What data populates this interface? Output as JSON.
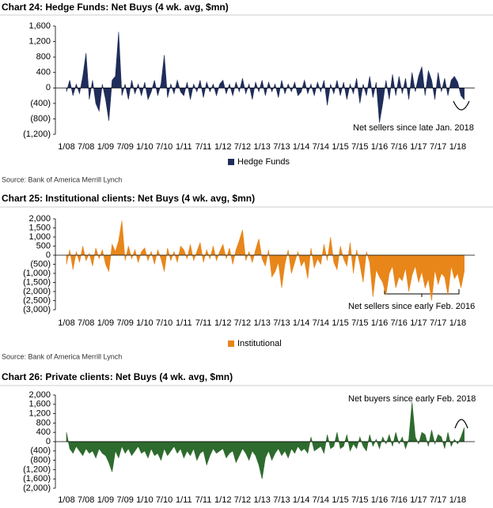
{
  "chart_data": [
    {
      "type": "area",
      "title": "Chart 24: Hedge Funds: Net Buys (4 wk. avg, $mn)",
      "categories": [
        "1/08",
        null,
        null,
        null,
        null,
        null,
        "7/08",
        null,
        null,
        null,
        null,
        null,
        "1/09",
        null,
        null,
        null,
        null,
        null,
        "7/09",
        null,
        null,
        null,
        null,
        null,
        "1/10",
        null,
        null,
        null,
        null,
        null,
        "7/10",
        null,
        null,
        null,
        null,
        null,
        "1/11",
        null,
        null,
        null,
        null,
        null,
        "7/11",
        null,
        null,
        null,
        null,
        null,
        "1/12",
        null,
        null,
        null,
        null,
        null,
        "7/12",
        null,
        null,
        null,
        null,
        null,
        "1/13",
        null,
        null,
        null,
        null,
        null,
        "7/13",
        null,
        null,
        null,
        null,
        null,
        "1/14",
        null,
        null,
        null,
        null,
        null,
        "7/14",
        null,
        null,
        null,
        null,
        null,
        "1/15",
        null,
        null,
        null,
        null,
        null,
        "7/15",
        null,
        null,
        null,
        null,
        null,
        "1/16",
        null,
        null,
        null,
        null,
        null,
        "7/16",
        null,
        null,
        null,
        null,
        null,
        "1/17",
        null,
        null,
        null,
        null,
        null,
        "7/17",
        null,
        null,
        null,
        null,
        null,
        "1/18",
        null,
        null
      ],
      "series": [
        {
          "name": "Hedge Funds",
          "color": "#1f2d5a",
          "values": [
            -100,
            200,
            -200,
            100,
            -150,
            300,
            900,
            -300,
            200,
            -400,
            -600,
            100,
            -300,
            -850,
            200,
            300,
            1450,
            -200,
            100,
            -300,
            200,
            -150,
            100,
            -200,
            150,
            -300,
            -100,
            200,
            -200,
            100,
            850,
            -250,
            100,
            -150,
            200,
            -100,
            -200,
            150,
            -300,
            100,
            -100,
            200,
            -250,
            150,
            -100,
            100,
            -200,
            100,
            200,
            -150,
            100,
            -200,
            150,
            -100,
            250,
            -150,
            100,
            -300,
            150,
            -100,
            200,
            -200,
            150,
            -100,
            100,
            -250,
            200,
            -150,
            100,
            -100,
            150,
            -200,
            -100,
            200,
            -150,
            100,
            -200,
            150,
            -100,
            200,
            -450,
            100,
            -150,
            200,
            -200,
            150,
            -300,
            100,
            -150,
            250,
            -400,
            100,
            -200,
            300,
            -250,
            150,
            -900,
            -400,
            200,
            -300,
            350,
            -200,
            300,
            -150,
            250,
            -300,
            400,
            -100,
            300,
            550,
            -200,
            450,
            200,
            -300,
            400,
            -100,
            250,
            -200,
            200,
            300,
            150,
            -200,
            -300
          ]
        }
      ],
      "ylim": [
        -1200,
        1600
      ],
      "yticks": [
        {
          "value": -1200,
          "label": "(1,200)"
        },
        {
          "value": -800,
          "label": "(800)"
        },
        {
          "value": -400,
          "label": "(400)"
        },
        0,
        400,
        800,
        {
          "value": 1200,
          "label": "1,200"
        },
        {
          "value": 1600,
          "label": "1,600"
        }
      ],
      "annotation": "Net sellers since late Jan. 2018",
      "source": "Source: Bank of America Merrill Lynch"
    },
    {
      "type": "area",
      "title": "Chart 25: Institutional clients: Net Buys (4 wk. avg, $mn)",
      "categories": [
        "1/08",
        null,
        null,
        null,
        null,
        null,
        "7/08",
        null,
        null,
        null,
        null,
        null,
        "1/09",
        null,
        null,
        null,
        null,
        null,
        "7/09",
        null,
        null,
        null,
        null,
        null,
        "1/10",
        null,
        null,
        null,
        null,
        null,
        "7/10",
        null,
        null,
        null,
        null,
        null,
        "1/11",
        null,
        null,
        null,
        null,
        null,
        "7/11",
        null,
        null,
        null,
        null,
        null,
        "1/12",
        null,
        null,
        null,
        null,
        null,
        "7/12",
        null,
        null,
        null,
        null,
        null,
        "1/13",
        null,
        null,
        null,
        null,
        null,
        "7/13",
        null,
        null,
        null,
        null,
        null,
        "1/14",
        null,
        null,
        null,
        null,
        null,
        "7/14",
        null,
        null,
        null,
        null,
        null,
        "1/15",
        null,
        null,
        null,
        null,
        null,
        "7/15",
        null,
        null,
        null,
        null,
        null,
        "1/16",
        null,
        null,
        null,
        null,
        null,
        "7/16",
        null,
        null,
        null,
        null,
        null,
        "1/17",
        null,
        null,
        null,
        null,
        null,
        "7/17",
        null,
        null,
        null,
        null,
        null,
        "1/18",
        null,
        null
      ],
      "series": [
        {
          "name": "Institutional",
          "color": "#e8861a",
          "values": [
            -500,
            300,
            -800,
            200,
            -400,
            500,
            -300,
            100,
            -600,
            400,
            -200,
            300,
            -500,
            -900,
            600,
            200,
            800,
            1900,
            -300,
            500,
            -200,
            300,
            -400,
            200,
            400,
            -300,
            200,
            -500,
            300,
            -200,
            -900,
            400,
            -300,
            200,
            -400,
            500,
            300,
            -200,
            600,
            -300,
            200,
            700,
            -400,
            300,
            -200,
            500,
            -300,
            200,
            600,
            -200,
            400,
            -500,
            300,
            800,
            1400,
            -300,
            200,
            -400,
            300,
            900,
            -200,
            -600,
            300,
            -1200,
            -900,
            -400,
            -1800,
            -500,
            300,
            -1000,
            -400,
            200,
            -600,
            -300,
            -1300,
            400,
            -700,
            -200,
            -500,
            600,
            -300,
            1000,
            -400,
            -800,
            500,
            -200,
            -600,
            700,
            -1000,
            300,
            -500,
            -1500,
            200,
            -400,
            -2300,
            -800,
            -1200,
            -1500,
            -2200,
            -1000,
            -600,
            -1800,
            -1200,
            -1400,
            -700,
            -2000,
            -1100,
            -600,
            -1500,
            -900,
            -1800,
            -1300,
            -2500,
            -800,
            -1600,
            -1000,
            -1200,
            -2200,
            -600,
            -1300,
            -1000,
            -1800,
            -900
          ]
        }
      ],
      "ylim": [
        -3000,
        2000
      ],
      "yticks": [
        {
          "value": -3000,
          "label": "(3,000)"
        },
        {
          "value": -2500,
          "label": "(2,500)"
        },
        {
          "value": -2000,
          "label": "(2,000)"
        },
        {
          "value": -1500,
          "label": "(1,500)"
        },
        {
          "value": -1000,
          "label": "(1,000)"
        },
        {
          "value": -500,
          "label": "(500)"
        },
        0,
        500,
        {
          "value": 1000,
          "label": "1,000"
        },
        {
          "value": 1500,
          "label": "1,500"
        },
        {
          "value": 2000,
          "label": "2,000"
        }
      ],
      "annotation": "Net sellers since early Feb. 2016",
      "source": "Source: Bank of America Merrill Lynch"
    },
    {
      "type": "area",
      "title": "Chart 26: Private clients: Net Buys (4 wk. avg, $mn)",
      "categories": [
        "1/08",
        null,
        null,
        null,
        null,
        null,
        "7/08",
        null,
        null,
        null,
        null,
        null,
        "1/09",
        null,
        null,
        null,
        null,
        null,
        "7/09",
        null,
        null,
        null,
        null,
        null,
        "1/10",
        null,
        null,
        null,
        null,
        null,
        "7/10",
        null,
        null,
        null,
        null,
        null,
        "1/11",
        null,
        null,
        null,
        null,
        null,
        "7/11",
        null,
        null,
        null,
        null,
        null,
        "1/12",
        null,
        null,
        null,
        null,
        null,
        "7/12",
        null,
        null,
        null,
        null,
        null,
        "1/13",
        null,
        null,
        null,
        null,
        null,
        "7/13",
        null,
        null,
        null,
        null,
        null,
        "1/14",
        null,
        null,
        null,
        null,
        null,
        "7/14",
        null,
        null,
        null,
        null,
        null,
        "1/15",
        null,
        null,
        null,
        null,
        null,
        "7/15",
        null,
        null,
        null,
        null,
        null,
        "1/16",
        null,
        null,
        null,
        null,
        null,
        "7/16",
        null,
        null,
        null,
        null,
        null,
        "1/17",
        null,
        null,
        null,
        null,
        null,
        "7/17",
        null,
        null,
        null,
        null,
        null,
        "1/18",
        null,
        null
      ],
      "color": "#2e6b2e",
      "values": [
        400,
        -300,
        -500,
        -200,
        -400,
        -600,
        -300,
        -500,
        -400,
        -700,
        -300,
        -500,
        -600,
        -900,
        -1300,
        -400,
        -700,
        -200,
        -500,
        -300,
        -600,
        -400,
        -200,
        -500,
        -400,
        -700,
        -300,
        -600,
        -500,
        -800,
        -300,
        -600,
        -400,
        -200,
        -500,
        -300,
        -700,
        -400,
        -600,
        -300,
        -800,
        -500,
        -400,
        -1000,
        -600,
        -300,
        -500,
        -400,
        -300,
        -700,
        -500,
        -400,
        -900,
        -600,
        -300,
        -500,
        -800,
        -400,
        -600,
        -1000,
        -1600,
        -700,
        -400,
        -800,
        -500,
        -300,
        -600,
        -400,
        -700,
        -300,
        -500,
        -200,
        -400,
        -300,
        -500,
        200,
        -400,
        -300,
        -200,
        -500,
        300,
        -300,
        -200,
        400,
        -300,
        -200,
        300,
        -400,
        -100,
        -300,
        200,
        -200,
        -400,
        300,
        -200,
        100,
        -300,
        200,
        -100,
        300,
        -200,
        400,
        -100,
        200,
        -300,
        100,
        1700,
        200,
        -100,
        400,
        300,
        -200,
        500,
        -100,
        300,
        200,
        -300,
        400,
        -200,
        100,
        -100,
        200,
        600
      ],
      "ylim": [
        -2000,
        2000
      ],
      "yticks": [
        {
          "value": -2000,
          "label": "(2,000)"
        },
        {
          "value": -1600,
          "label": "(1,600)"
        },
        {
          "value": -1200,
          "label": "(1,200)"
        },
        {
          "value": -800,
          "label": "(800)"
        },
        {
          "value": -400,
          "label": "(400)"
        },
        0,
        400,
        800,
        {
          "value": 1200,
          "label": "1,200"
        },
        {
          "value": 1600,
          "label": "1,600"
        },
        {
          "value": 2000,
          "label": "2,000"
        }
      ],
      "annotation": "Net buyers since early Feb. 2018"
    }
  ]
}
